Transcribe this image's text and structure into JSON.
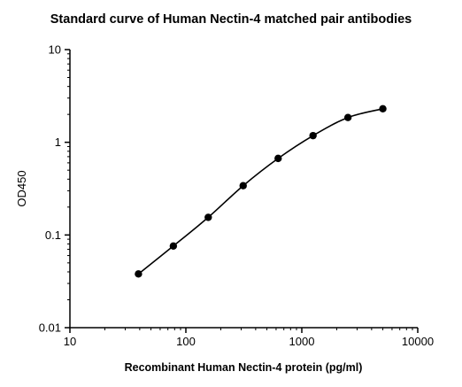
{
  "chart_data": {
    "type": "scatter",
    "title": "Standard curve of Human Nectin-4 matched pair antibodies",
    "xlabel": "Recombinant Human Nectin-4 protein (pg/ml)",
    "ylabel": "OD450",
    "xscale": "log",
    "yscale": "log",
    "xlim": [
      10,
      10000
    ],
    "ylim": [
      0.01,
      10
    ],
    "xticks": [
      "10",
      "100",
      "1000",
      "10000"
    ],
    "yticks": [
      "0.01",
      "0.1",
      "1",
      "10"
    ],
    "grid": false,
    "fit_line": true,
    "series": [
      {
        "x": [
          39,
          78,
          156,
          312,
          625,
          1250,
          2500,
          5000
        ],
        "y": [
          0.038,
          0.076,
          0.155,
          0.34,
          0.67,
          1.18,
          1.85,
          2.3
        ]
      }
    ]
  }
}
